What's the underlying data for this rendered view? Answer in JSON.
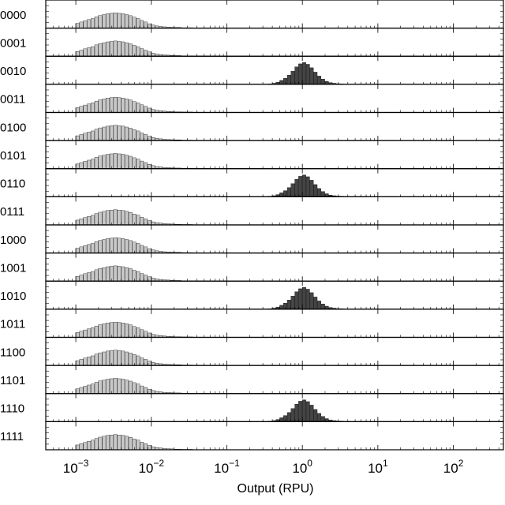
{
  "chart_data": {
    "type": "bar",
    "description_free": true,
    "xlabel": "Output (RPU)",
    "xscale": "log",
    "xlim": [
      0.0004,
      460
    ],
    "x_ticks": [
      {
        "value": 0.001,
        "base": "10",
        "exp": "−3"
      },
      {
        "value": 0.01,
        "base": "10",
        "exp": "−2"
      },
      {
        "value": 0.1,
        "base": "10",
        "exp": "−1"
      },
      {
        "value": 1,
        "base": "10",
        "exp": "0"
      },
      {
        "value": 10,
        "base": "10",
        "exp": "1"
      },
      {
        "value": 100,
        "base": "10",
        "exp": "2"
      }
    ],
    "grid": false,
    "colors": {
      "off": "#c8c8c8",
      "on": "#444444",
      "edge": "#000000",
      "frame": "#000000"
    },
    "distributions": {
      "off": {
        "bins_log10": [
          -3.0,
          -2.95,
          -2.9,
          -2.85,
          -2.8,
          -2.75,
          -2.7,
          -2.65,
          -2.6,
          -2.55,
          -2.5,
          -2.45,
          -2.4,
          -2.35,
          -2.3,
          -2.25,
          -2.2,
          -2.15,
          -2.1,
          -2.05,
          -2.0,
          -1.95,
          -1.9,
          -1.85,
          -1.8,
          -1.75,
          -1.7,
          -1.65,
          -1.6,
          -1.55,
          -1.5,
          -1.45,
          -1.4,
          -1.35,
          -1.3
        ],
        "relative_height": [
          0.22,
          0.28,
          0.34,
          0.39,
          0.44,
          0.52,
          0.58,
          0.62,
          0.66,
          0.68,
          0.7,
          0.68,
          0.66,
          0.62,
          0.57,
          0.5,
          0.44,
          0.35,
          0.28,
          0.2,
          0.14,
          0.1,
          0.08,
          0.06,
          0.05,
          0.04,
          0.03,
          0.03,
          0.02,
          0.02,
          0.02,
          0.01,
          0.01,
          0.01,
          0.01
        ]
      },
      "on": {
        "bins_log10": [
          -0.45,
          -0.4,
          -0.35,
          -0.3,
          -0.25,
          -0.2,
          -0.15,
          -0.1,
          -0.05,
          0.0,
          0.05,
          0.1,
          0.15,
          0.2,
          0.25,
          0.3,
          0.35,
          0.4,
          0.45,
          0.5,
          0.55
        ],
        "relative_height": [
          0.02,
          0.05,
          0.1,
          0.18,
          0.28,
          0.42,
          0.6,
          0.8,
          0.94,
          1.0,
          0.92,
          0.76,
          0.56,
          0.38,
          0.24,
          0.14,
          0.08,
          0.05,
          0.03,
          0.02,
          0.01
        ]
      }
    },
    "rows": [
      {
        "label": "0000",
        "state": "off"
      },
      {
        "label": "0001",
        "state": "off"
      },
      {
        "label": "0010",
        "state": "on"
      },
      {
        "label": "0011",
        "state": "off"
      },
      {
        "label": "0100",
        "state": "off"
      },
      {
        "label": "0101",
        "state": "off"
      },
      {
        "label": "0110",
        "state": "on"
      },
      {
        "label": "0111",
        "state": "off"
      },
      {
        "label": "1000",
        "state": "off"
      },
      {
        "label": "1001",
        "state": "off"
      },
      {
        "label": "1010",
        "state": "on"
      },
      {
        "label": "1011",
        "state": "off"
      },
      {
        "label": "1100",
        "state": "off"
      },
      {
        "label": "1101",
        "state": "off"
      },
      {
        "label": "1110",
        "state": "on"
      },
      {
        "label": "1111",
        "state": "off"
      }
    ]
  }
}
